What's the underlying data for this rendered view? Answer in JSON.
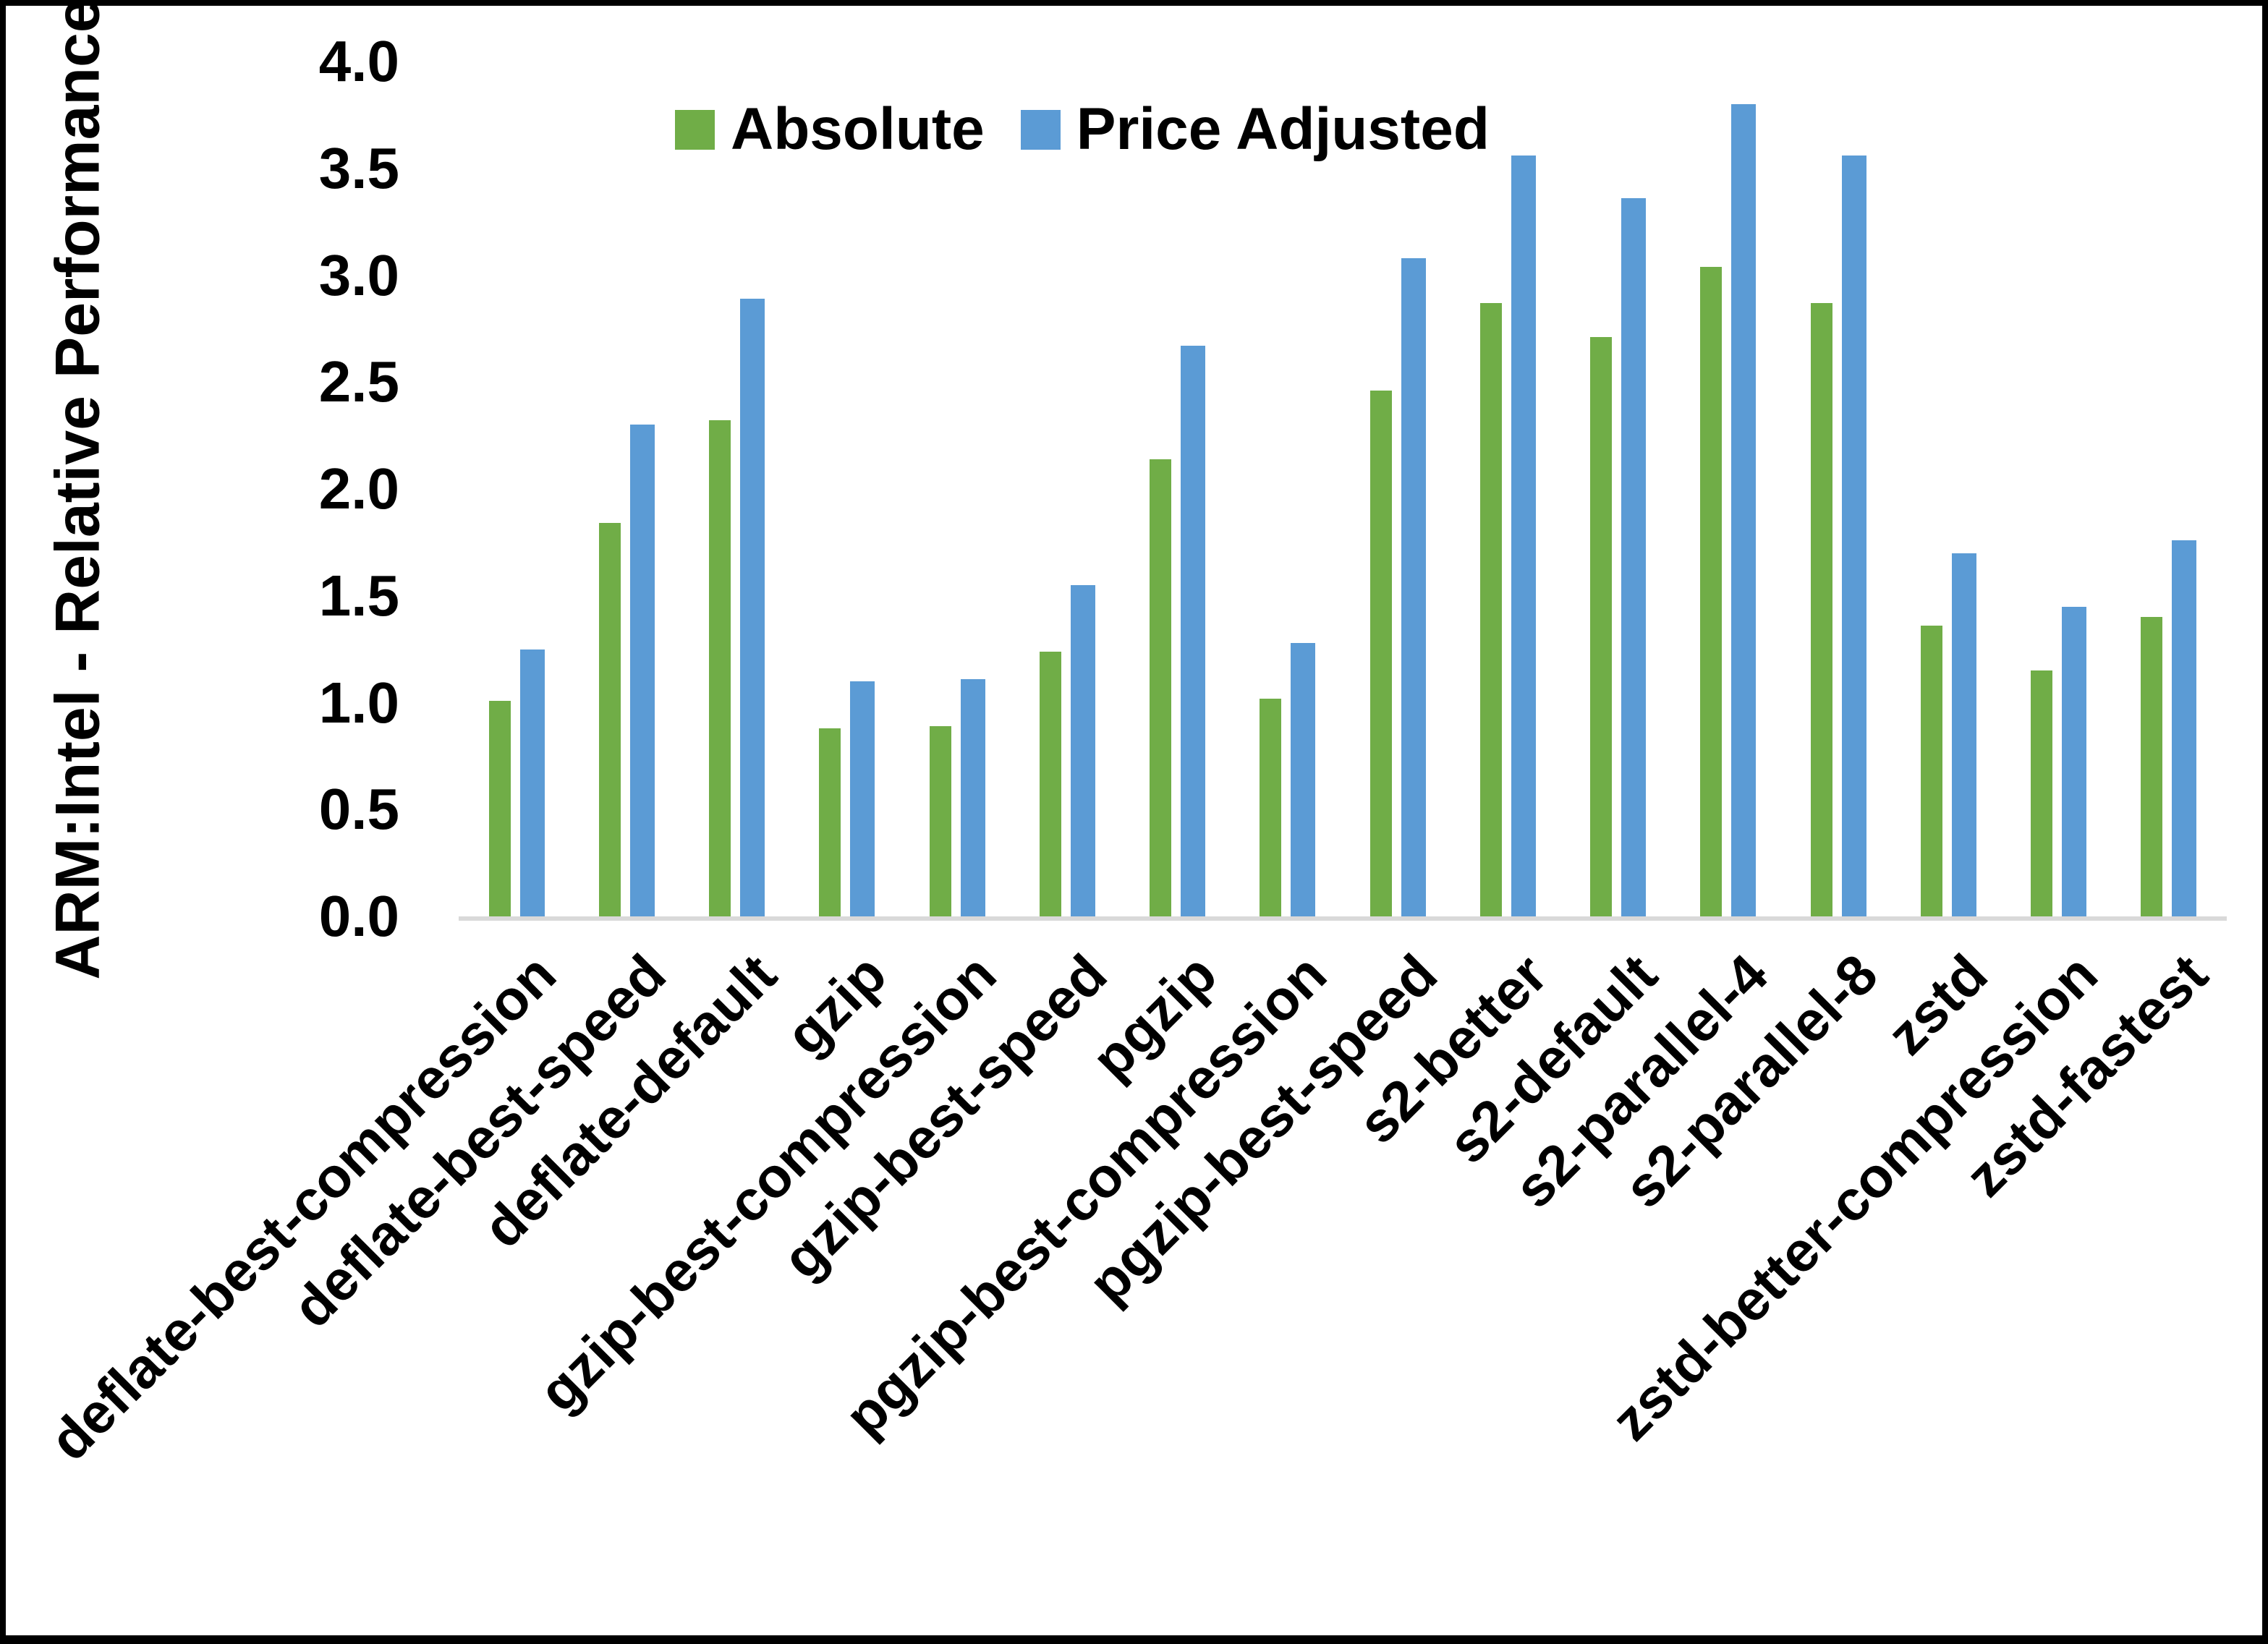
{
  "chart_data": {
    "type": "bar",
    "title": "",
    "ylabel": "ARM:Intel - Relative Performance",
    "xlabel": "",
    "ylim": [
      0,
      4
    ],
    "ytick_step": 0.5,
    "yticks": [
      "0.0",
      "0.5",
      "1.0",
      "1.5",
      "2.0",
      "2.5",
      "3.0",
      "3.5",
      "4.0"
    ],
    "grid": false,
    "legend_position": "top-center",
    "categories": [
      "deflate-best-compression",
      "deflate-best-speed",
      "deflate-default",
      "gzip",
      "gzip-best-compression",
      "gzip-best-speed",
      "pgzip",
      "pgzip-best-compression",
      "pgzip-best-speed",
      "s2-better",
      "s2-default",
      "s2-parallel-4",
      "s2-parallel-8",
      "zstd",
      "zstd-better-compression",
      "zstd-fastest"
    ],
    "series": [
      {
        "name": "Absolute",
        "color": "#70AD47",
        "values": [
          1.01,
          1.84,
          2.32,
          0.88,
          0.89,
          1.24,
          2.14,
          1.02,
          2.46,
          2.87,
          2.71,
          3.04,
          2.87,
          1.36,
          1.15,
          1.4
        ]
      },
      {
        "name": "Price Adjusted",
        "color": "#5B9BD5",
        "values": [
          1.25,
          2.3,
          2.89,
          1.1,
          1.11,
          1.55,
          2.67,
          1.28,
          3.08,
          3.56,
          3.36,
          3.8,
          3.56,
          1.7,
          1.45,
          1.76
        ]
      }
    ]
  }
}
